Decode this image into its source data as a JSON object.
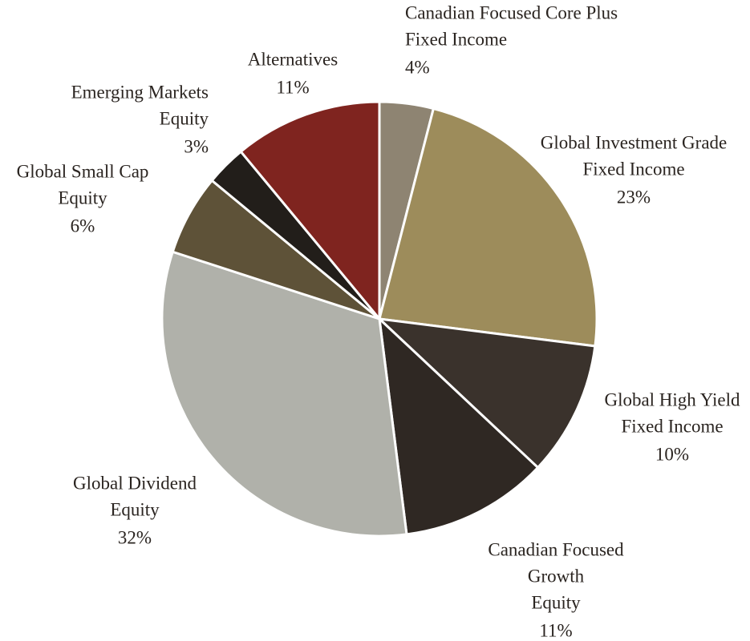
{
  "chart_data": {
    "type": "pie",
    "categories": [
      [
        "Canadian Focused Core Plus",
        "Fixed Income"
      ],
      [
        "Global Investment Grade",
        "Fixed Income"
      ],
      [
        "Global High Yield",
        "Fixed Income"
      ],
      [
        "Canadian Focused",
        "Growth",
        "Equity"
      ],
      [
        "Global Dividend",
        "Equity"
      ],
      [
        "Global Small Cap",
        "Equity"
      ],
      [
        "Emerging Markets",
        "Equity"
      ],
      [
        "Alternatives"
      ]
    ],
    "values": [
      4,
      23,
      10,
      11,
      32,
      6,
      3,
      11
    ],
    "value_labels": [
      "4%",
      "23%",
      "10%",
      "11%",
      "32%",
      "6%",
      "3%",
      "11%"
    ],
    "colors": [
      "#8e8472",
      "#9d8c5b",
      "#3a322c",
      "#2f2823",
      "#b0b1aa",
      "#5e5238",
      "#221e1a",
      "#7f241f"
    ]
  }
}
